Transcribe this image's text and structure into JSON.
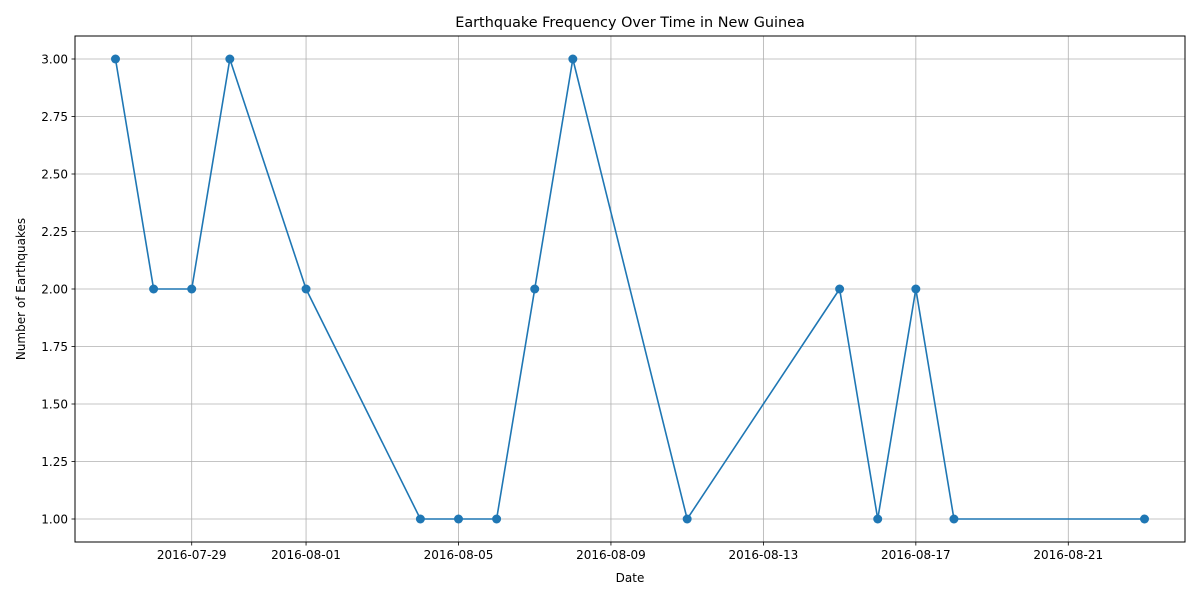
{
  "chart_data": {
    "type": "line",
    "title": "Earthquake Frequency Over Time in New Guinea",
    "xlabel": "Date",
    "ylabel": "Number of Earthquakes",
    "x_type": "date",
    "xlim": [
      "2016-07-25T22:30:00",
      "2016-08-24T01:30:00"
    ],
    "ylim": [
      0.9,
      3.1
    ],
    "x_ticks": [
      "2016-07-29",
      "2016-08-01",
      "2016-08-05",
      "2016-08-09",
      "2016-08-13",
      "2016-08-17",
      "2016-08-21"
    ],
    "y_ticks": [
      1.0,
      1.25,
      1.5,
      1.75,
      2.0,
      2.25,
      2.5,
      2.75,
      3.0
    ],
    "y_tick_labels": [
      "1.00",
      "1.25",
      "1.50",
      "1.75",
      "2.00",
      "2.25",
      "2.50",
      "2.75",
      "3.00"
    ],
    "grid": true,
    "series": [
      {
        "color": "#1f77b4",
        "marker": "circle",
        "points": [
          {
            "x": "2016-07-27",
            "y": 3
          },
          {
            "x": "2016-07-28",
            "y": 2
          },
          {
            "x": "2016-07-29",
            "y": 2
          },
          {
            "x": "2016-07-30",
            "y": 3
          },
          {
            "x": "2016-08-01",
            "y": 2
          },
          {
            "x": "2016-08-04",
            "y": 1
          },
          {
            "x": "2016-08-05",
            "y": 1
          },
          {
            "x": "2016-08-06",
            "y": 1
          },
          {
            "x": "2016-08-07",
            "y": 2
          },
          {
            "x": "2016-08-08",
            "y": 3
          },
          {
            "x": "2016-08-11",
            "y": 1
          },
          {
            "x": "2016-08-15",
            "y": 2
          },
          {
            "x": "2016-08-16",
            "y": 1
          },
          {
            "x": "2016-08-17",
            "y": 2
          },
          {
            "x": "2016-08-18",
            "y": 1
          },
          {
            "x": "2016-08-23",
            "y": 1
          }
        ]
      }
    ]
  }
}
